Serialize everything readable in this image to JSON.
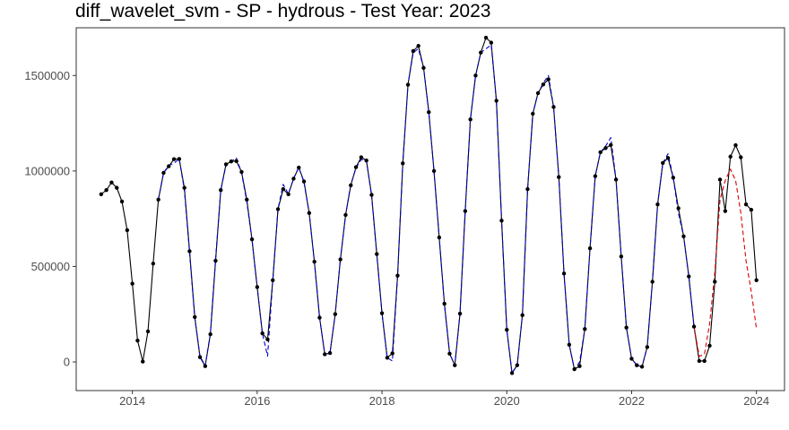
{
  "chart_data": {
    "type": "line",
    "title": "diff_wavelet_svm - SP - hydrous - Test Year: 2023",
    "xlabel": "",
    "ylabel": "",
    "xlim": [
      2013.1,
      2024.45
    ],
    "ylim": [
      -150000,
      1750000
    ],
    "x_ticks": [
      2014,
      2016,
      2018,
      2020,
      2022,
      2024
    ],
    "x_tick_labels": [
      "2014",
      "2016",
      "2018",
      "2020",
      "2022",
      "2024"
    ],
    "y_ticks": [
      0,
      500000,
      1000000,
      1500000
    ],
    "y_tick_labels": [
      "0",
      "500000",
      "1000000",
      "1500000"
    ],
    "grid": false,
    "x_start": 2013.5,
    "x_step": 0.08333333,
    "series": [
      {
        "style": "solid-with-points",
        "color": "#000000",
        "values": [
          878000,
          900000,
          940000,
          912000,
          840000,
          690000,
          410000,
          112000,
          2000,
          160000,
          515000,
          850000,
          990000,
          1025000,
          1062000,
          1063000,
          912000,
          580000,
          235000,
          25000,
          -22000,
          145000,
          530000,
          900000,
          1035000,
          1050000,
          1052000,
          995000,
          850000,
          642000,
          392000,
          150000,
          118000,
          428000,
          800000,
          905000,
          878000,
          960000,
          1018000,
          945000,
          780000,
          525000,
          232000,
          40000,
          47000,
          250000,
          537000,
          770000,
          925000,
          1020000,
          1072000,
          1055000,
          875000,
          565000,
          255000,
          22000,
          45000,
          452000,
          1040000,
          1452000,
          1628000,
          1655000,
          1540000,
          1308000,
          1000000,
          652000,
          305000,
          43000,
          -17000,
          253000,
          790000,
          1270000,
          1500000,
          1620000,
          1698000,
          1672000,
          1368000,
          740000,
          168000,
          -58000,
          -17000,
          245000,
          905000,
          1300000,
          1408000,
          1453000,
          1480000,
          1335000,
          968000,
          463000,
          90000,
          -38000,
          -22000,
          172000,
          595000,
          973000,
          1098000,
          1120000,
          1136000,
          955000,
          552000,
          180000,
          17000,
          -17000,
          -25000,
          78000,
          420000,
          825000,
          1042000,
          1068000,
          965000,
          805000,
          658000,
          448000,
          185000,
          5000,
          5000,
          85000,
          420000,
          955000,
          790000,
          1075000,
          1135000,
          1072000,
          825000,
          797000,
          428000
        ]
      },
      {
        "style": "dashed",
        "color": "#0000cc",
        "start_index": 11,
        "values": [
          850000,
          990000,
          1030000,
          1040000,
          1065000,
          900000,
          570000,
          230000,
          30000,
          -20000,
          150000,
          540000,
          900000,
          1030000,
          1050000,
          1068000,
          990000,
          840000,
          640000,
          390000,
          150000,
          30000,
          428000,
          800000,
          930000,
          880000,
          960000,
          1020000,
          940000,
          780000,
          525000,
          232000,
          40000,
          47000,
          250000,
          537000,
          770000,
          930000,
          1015000,
          1060000,
          1055000,
          870000,
          560000,
          255000,
          22000,
          5000,
          452000,
          1040000,
          1452000,
          1620000,
          1640000,
          1540000,
          1308000,
          1000000,
          652000,
          305000,
          43000,
          -17000,
          253000,
          790000,
          1270000,
          1500000,
          1620000,
          1640000,
          1660000,
          1368000,
          740000,
          168000,
          -58000,
          -17000,
          245000,
          905000,
          1300000,
          1408000,
          1460000,
          1500000,
          1335000,
          968000,
          463000,
          90000,
          -38000,
          0,
          172000,
          595000,
          973000,
          1098000,
          1130000,
          1175000,
          955000,
          552000,
          180000,
          17000,
          -17000,
          -25000,
          78000,
          420000,
          825000,
          1042000,
          1090000,
          965000,
          780000,
          658000,
          448000,
          185000
        ]
      },
      {
        "style": "dashed",
        "color": "#dd0000",
        "start_index": 114,
        "values": [
          185000,
          30000,
          40000,
          200000,
          470000,
          850000,
          950000,
          1010000,
          950000,
          780000,
          530000,
          370000,
          175000
        ]
      }
    ]
  }
}
